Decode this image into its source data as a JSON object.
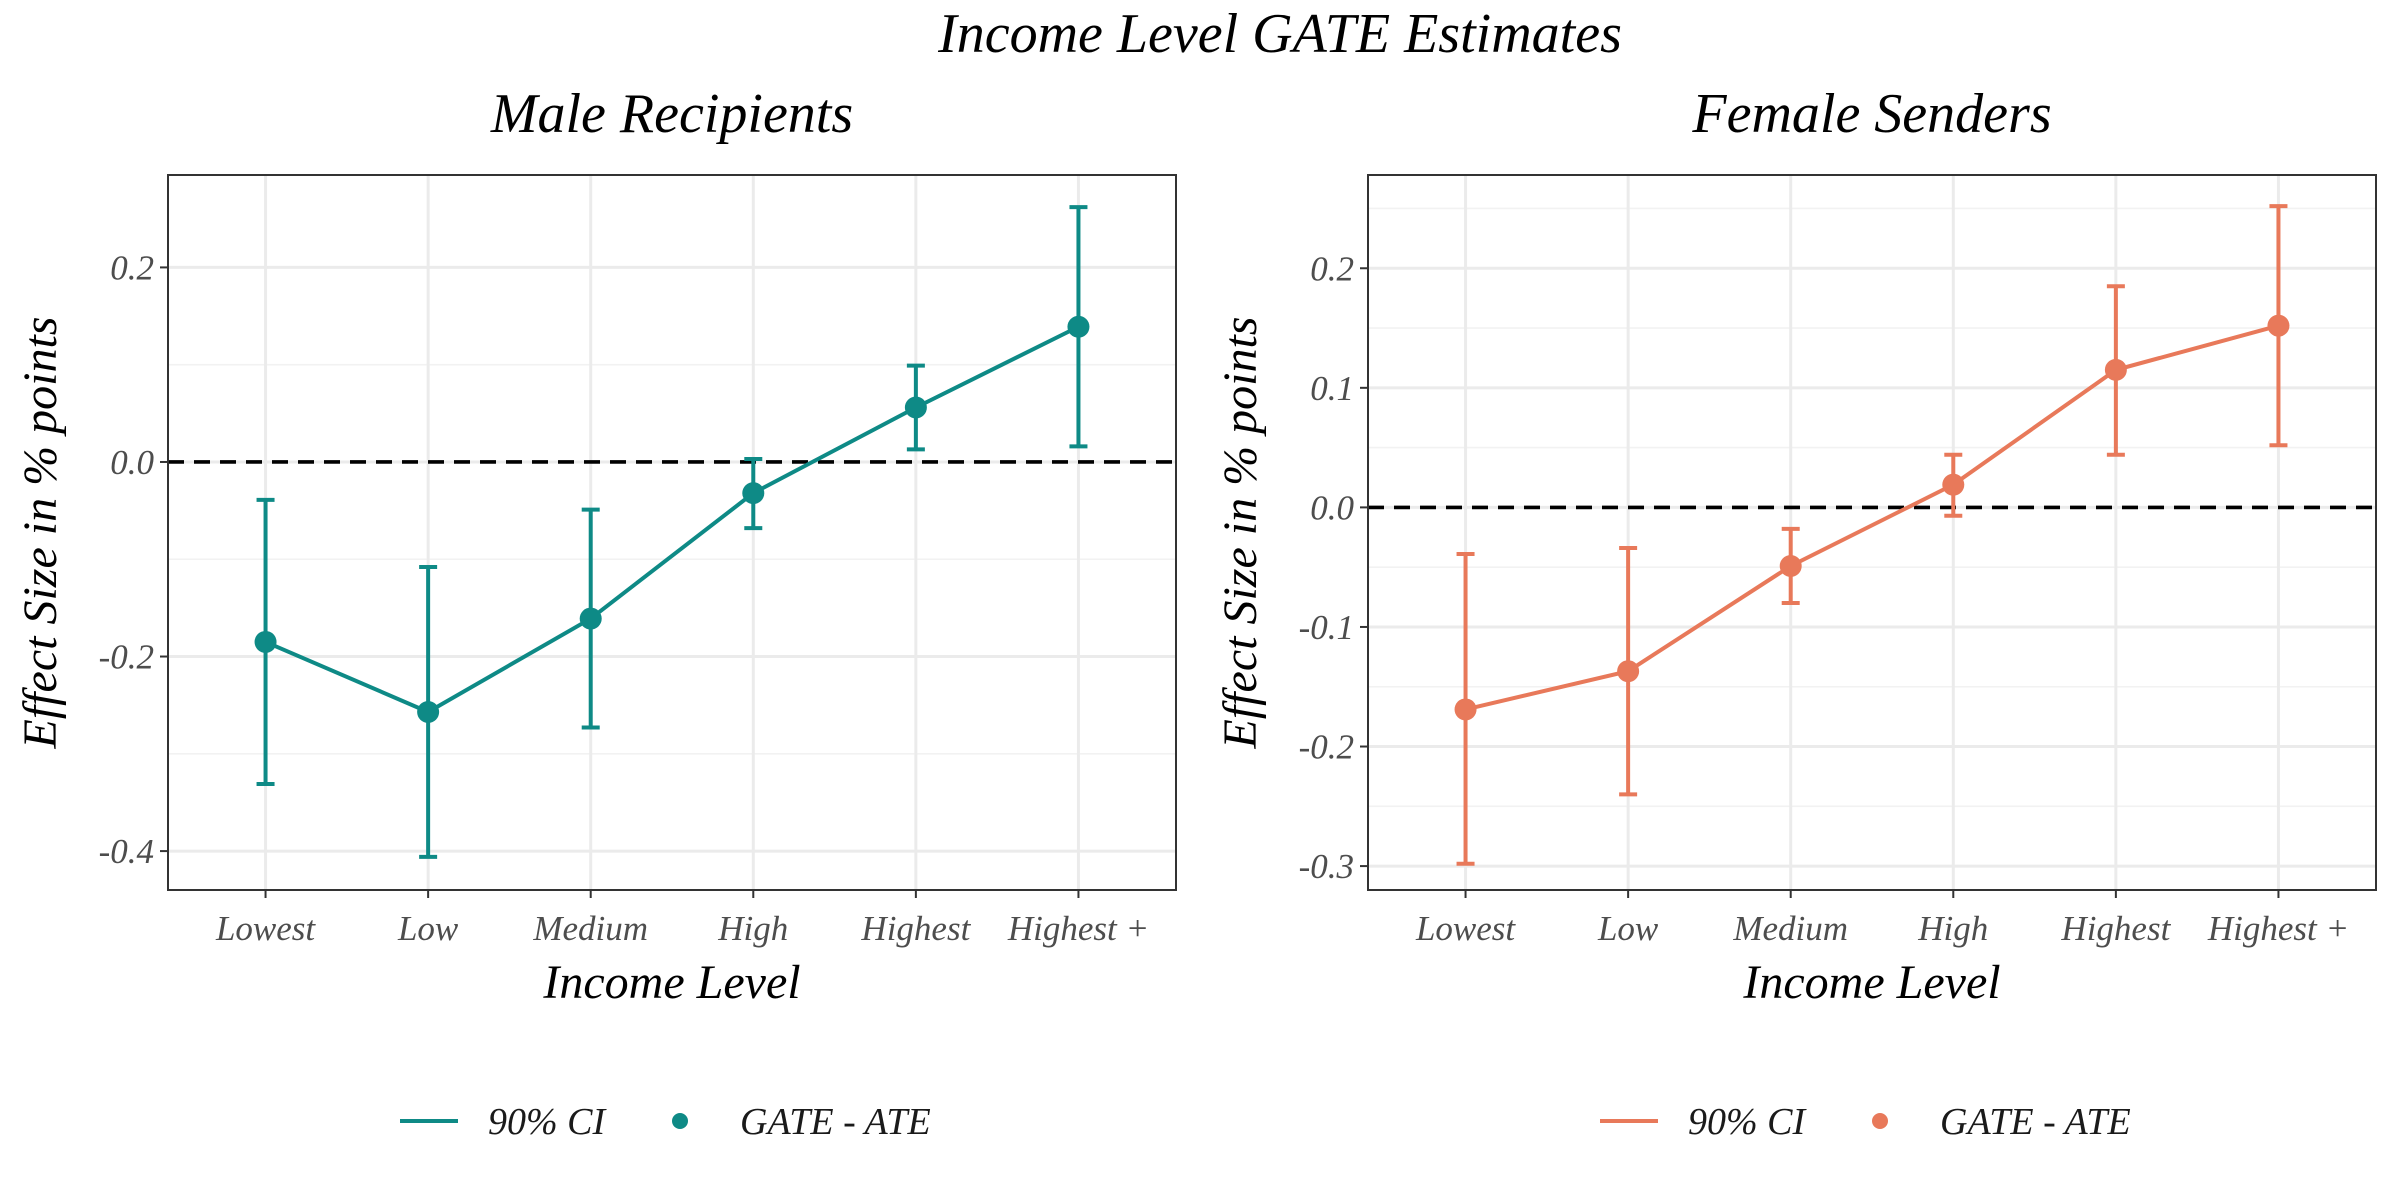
{
  "title": "Income Level GATE Estimates",
  "chart_data": [
    {
      "type": "line",
      "title": "Male Recipients",
      "xlabel": "Income Level",
      "ylabel": "Effect Size in % points",
      "categories": [
        "Lowest",
        "Low",
        "Medium",
        "High",
        "Highest",
        "Highest +"
      ],
      "series": [
        {
          "name": "GATE - ATE",
          "values": [
            -0.185,
            -0.257,
            -0.161,
            -0.032,
            0.056,
            0.139
          ],
          "ci_lower": [
            -0.331,
            -0.406,
            -0.273,
            -0.068,
            0.013,
            0.016
          ],
          "ci_upper": [
            -0.039,
            -0.108,
            -0.049,
            0.003,
            0.099,
            0.262
          ]
        }
      ],
      "ylim": [
        -0.44,
        0.295
      ],
      "yticks": [
        -0.4,
        -0.2,
        0.0,
        0.2
      ],
      "ytick_labels": [
        "-0.4",
        "-0.2",
        "0.0",
        "0.2"
      ],
      "reference_line": 0.0,
      "color": "#0e8a86",
      "grid": true,
      "legend": {
        "position": "bottom",
        "ci_label": "90% CI",
        "point_label": "GATE - ATE"
      }
    },
    {
      "type": "line",
      "title": "Female Senders",
      "xlabel": "Income Level",
      "ylabel": "Effect Size in % points",
      "categories": [
        "Lowest",
        "Low",
        "Medium",
        "High",
        "Highest",
        "Highest +"
      ],
      "series": [
        {
          "name": "GATE - ATE",
          "values": [
            -0.169,
            -0.137,
            -0.049,
            0.019,
            0.115,
            0.152
          ],
          "ci_lower": [
            -0.298,
            -0.24,
            -0.08,
            -0.007,
            0.044,
            0.052
          ],
          "ci_upper": [
            -0.039,
            -0.034,
            -0.018,
            0.044,
            0.185,
            0.252
          ]
        }
      ],
      "ylim": [
        -0.32,
        0.278
      ],
      "yticks": [
        -0.3,
        -0.2,
        -0.1,
        0.0,
        0.1,
        0.2
      ],
      "ytick_labels": [
        "-0.3",
        "-0.2",
        "-0.1",
        "0.0",
        "0.1",
        "0.2"
      ],
      "reference_line": 0.0,
      "color": "#e8795a",
      "grid": true,
      "legend": {
        "position": "bottom",
        "ci_label": "90% CI",
        "point_label": "GATE - ATE"
      }
    }
  ]
}
